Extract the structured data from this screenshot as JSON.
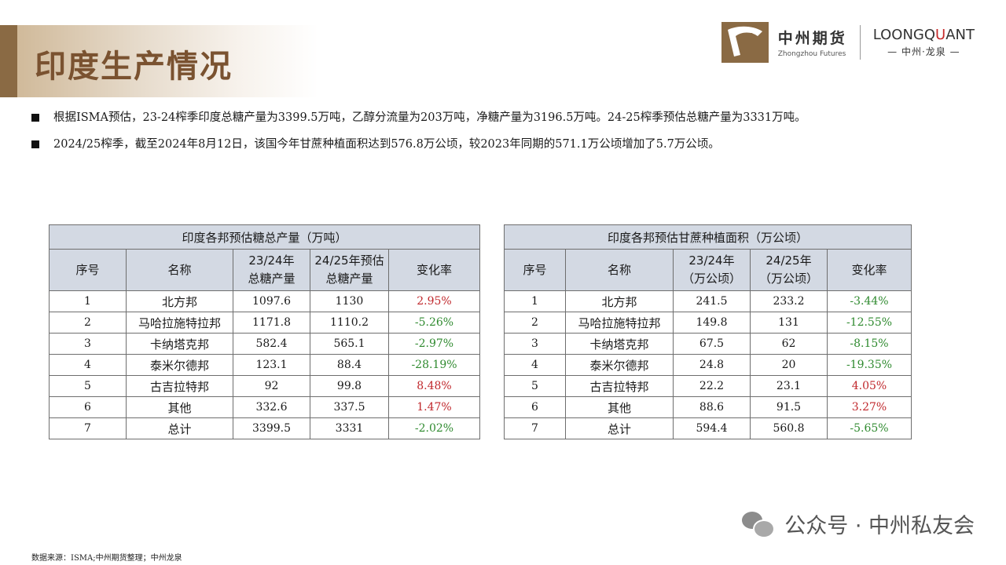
{
  "page": {
    "title": "印度生产情况",
    "logo_cn": "中州期货",
    "logo_en": "Zhongzhou Futures",
    "logo_lq_black1": "LOONGQ",
    "logo_lq_red": "U",
    "logo_lq_black2": "ANT",
    "logo_lq_sub": "— 中州·龙泉 —"
  },
  "bullets": [
    "根据ISMA预估，23-24榨季印度总糖产量为3399.5万吨，乙醇分流量为203万吨，净糖产量为3196.5万吨。24-25榨季预估总糖产量为3331万吨。",
    "2024/25榨季，截至2024年8月12日，该国今年甘蔗种植面积达到576.8万公顷，较2023年同期的571.1万公顷增加了5.7万公顷。"
  ],
  "table1": {
    "caption": "印度各邦预估糖总产量（万吨）",
    "headers": [
      "序号",
      "名称",
      "23/24年\n总糖产量",
      "24/25年预估\n总糖产量",
      "变化率"
    ],
    "rows": [
      {
        "no": "1",
        "name": "北方邦",
        "a": "1097.6",
        "b": "1130",
        "rate": "2.95%",
        "dir": "up"
      },
      {
        "no": "2",
        "name": "马哈拉施特拉邦",
        "a": "1171.8",
        "b": "1110.2",
        "rate": "-5.26%",
        "dir": "down"
      },
      {
        "no": "3",
        "name": "卡纳塔克邦",
        "a": "582.4",
        "b": "565.1",
        "rate": "-2.97%",
        "dir": "down"
      },
      {
        "no": "4",
        "name": "泰米尔德邦",
        "a": "123.1",
        "b": "88.4",
        "rate": "-28.19%",
        "dir": "down"
      },
      {
        "no": "5",
        "name": "古吉拉特邦",
        "a": "92",
        "b": "99.8",
        "rate": "8.48%",
        "dir": "up"
      },
      {
        "no": "6",
        "name": "其他",
        "a": "332.6",
        "b": "337.5",
        "rate": "1.47%",
        "dir": "up"
      },
      {
        "no": "7",
        "name": "总计",
        "a": "3399.5",
        "b": "3331",
        "rate": "-2.02%",
        "dir": "down"
      }
    ]
  },
  "table2": {
    "caption": "印度各邦预估甘蔗种植面积（万公顷）",
    "headers": [
      "序号",
      "名称",
      "23/24年\n（万公顷）",
      "24/25年\n（万公顷）",
      "变化率"
    ],
    "rows": [
      {
        "no": "1",
        "name": "北方邦",
        "a": "241.5",
        "b": "233.2",
        "rate": "-3.44%",
        "dir": "down"
      },
      {
        "no": "2",
        "name": "马哈拉施特拉邦",
        "a": "149.8",
        "b": "131",
        "rate": "-12.55%",
        "dir": "down"
      },
      {
        "no": "3",
        "name": "卡纳塔克邦",
        "a": "67.5",
        "b": "62",
        "rate": "-8.15%",
        "dir": "down"
      },
      {
        "no": "4",
        "name": "泰米尔德邦",
        "a": "24.8",
        "b": "20",
        "rate": "-19.35%",
        "dir": "down"
      },
      {
        "no": "5",
        "name": "古吉拉特邦",
        "a": "22.2",
        "b": "23.1",
        "rate": "4.05%",
        "dir": "up"
      },
      {
        "no": "6",
        "name": "其他",
        "a": "88.6",
        "b": "91.5",
        "rate": "3.27%",
        "dir": "up"
      },
      {
        "no": "7",
        "name": "总计",
        "a": "594.4",
        "b": "560.8",
        "rate": "-5.65%",
        "dir": "down"
      }
    ]
  },
  "colors": {
    "up": "#c0282c",
    "down": "#2f8a2f",
    "brand": "#8a6a44"
  },
  "icons": {
    "logo": "leopard-logo-icon",
    "wechat": "wechat-icon"
  },
  "wechat_label": "公众号 · 中州私友会",
  "source": "数据来源：ISMA;中州期货整理；中州龙泉"
}
